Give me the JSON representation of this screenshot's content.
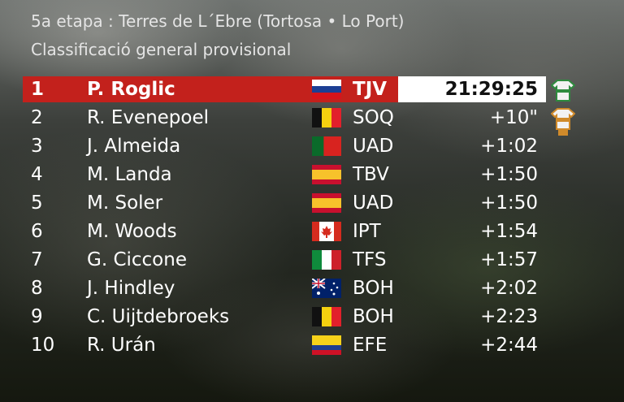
{
  "header": {
    "title": "5a etapa : Terres de L´Ebre (Tortosa • Lo Port)",
    "subtitle": "Classificació general provisional"
  },
  "table": {
    "rows": [
      [
        1,
        "P. Roglic",
        "TJV",
        "21:29:25"
      ],
      [
        2,
        "R. Evenepoel",
        "SOQ",
        "+10\""
      ],
      [
        3,
        "J. Almeida",
        "UAD",
        "+1:02"
      ],
      [
        4,
        "M. Landa",
        "TBV",
        "+1:50"
      ],
      [
        5,
        "M. Soler",
        "UAD",
        "+1:50"
      ],
      [
        6,
        "M. Woods",
        "IPT",
        "+1:54"
      ],
      [
        7,
        "G. Ciccone",
        "TFS",
        "+1:57"
      ],
      [
        8,
        "J. Hindley",
        "BOH",
        "+2:02"
      ],
      [
        9,
        "C. Uijtdebroeks",
        "BOH",
        "+2:23"
      ],
      [
        10,
        "R. Urán",
        "EFE",
        "+2:44"
      ]
    ]
  }
}
